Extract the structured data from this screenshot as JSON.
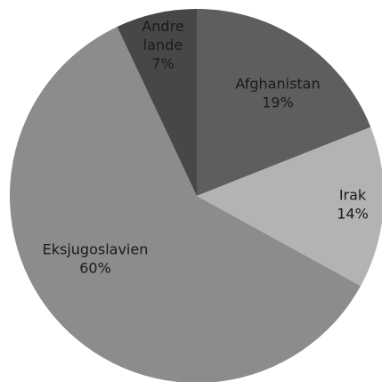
{
  "chart_data": {
    "type": "pie",
    "title": "",
    "slices": [
      {
        "label_lines": [
          "Afghanistan",
          "19%"
        ],
        "name": "Afghanistan",
        "value": 19,
        "color": "#5e5e5e"
      },
      {
        "label_lines": [
          "Irak",
          "14%"
        ],
        "name": "Irak",
        "value": 14,
        "color": "#b3b3b3"
      },
      {
        "label_lines": [
          "Eksjugoslavien",
          "60%"
        ],
        "name": "Eksjugoslavien",
        "value": 60,
        "color": "#8c8c8c"
      },
      {
        "label_lines": [
          "Andre",
          "lande",
          "7%"
        ],
        "name": "Andre lande",
        "value": 7,
        "color": "#474747"
      }
    ],
    "start_angle": "12 o'clock",
    "direction": "clockwise",
    "legend": "none"
  }
}
